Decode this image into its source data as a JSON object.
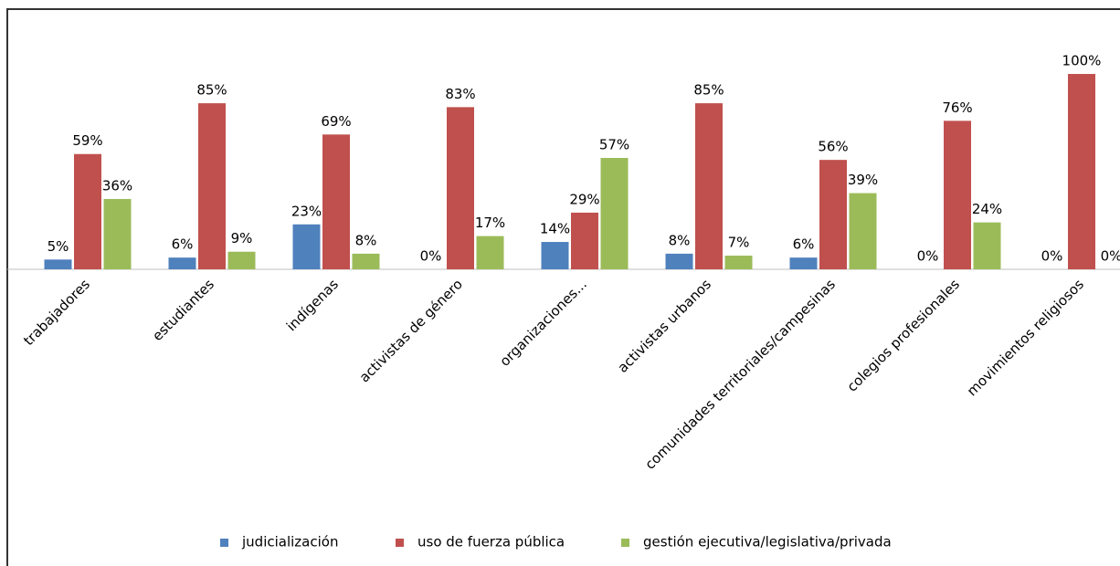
{
  "chart_data": {
    "type": "bar",
    "categories": [
      "trabajadores",
      "estudiantes",
      "indígenas",
      "activistas de género",
      "organizaciones...",
      "activistas urbanos",
      "comunidades territoriales/campesinas",
      "colegios profesionales",
      "movimientos religiosos"
    ],
    "series": [
      {
        "name": "judicialización",
        "color": "#4f81bd",
        "values": [
          5,
          6,
          23,
          0,
          14,
          8,
          6,
          0,
          0
        ],
        "value_labels": [
          "5%",
          "6%",
          "23%",
          "0%",
          "14%",
          "8%",
          "6%",
          "0%",
          "0%"
        ]
      },
      {
        "name": "uso de fuerza pública",
        "color": "#c0504d",
        "values": [
          59,
          85,
          69,
          83,
          29,
          85,
          56,
          76,
          100
        ],
        "value_labels": [
          "59%",
          "85%",
          "69%",
          "83%",
          "29%",
          "85%",
          "56%",
          "76%",
          "100%"
        ]
      },
      {
        "name": "gestión ejecutiva/legislativa/privada",
        "color": "#9bbb59",
        "values": [
          36,
          9,
          8,
          17,
          57,
          7,
          39,
          24,
          0
        ],
        "value_labels": [
          "36%",
          "9%",
          "8%",
          "17%",
          "57%",
          "7%",
          "39%",
          "24%",
          "0%"
        ]
      }
    ],
    "legend": "bottom"
  }
}
